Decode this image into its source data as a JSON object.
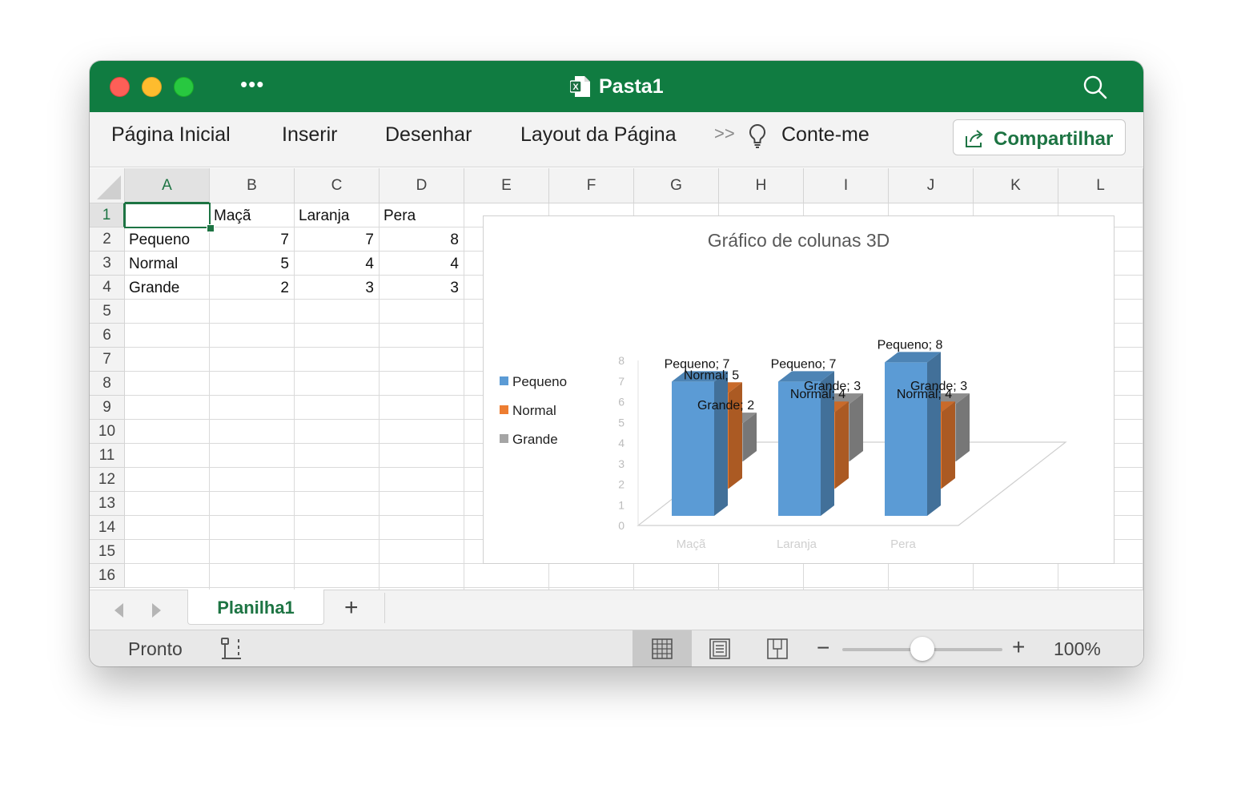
{
  "window": {
    "title": "Pasta1",
    "more_label": "•••"
  },
  "ribbon": {
    "tabs": [
      "Página Inicial",
      "Inserir",
      "Desenhar",
      "Layout da Página"
    ],
    "more": ">>",
    "tell_me": "Conte-me",
    "share_label": "Compartilhar"
  },
  "sheet": {
    "columns": [
      "A",
      "B",
      "C",
      "D",
      "E",
      "F",
      "G",
      "H",
      "I",
      "J",
      "K",
      "L"
    ],
    "rows": [
      "1",
      "2",
      "3",
      "4",
      "5",
      "6",
      "7",
      "8",
      "9",
      "10",
      "11",
      "12",
      "13",
      "14",
      "15",
      "16"
    ],
    "selected_cell": "A1",
    "header_row": [
      "",
      "Maçã",
      "Laranja",
      "Pera"
    ],
    "data_rows": [
      {
        "label": "Pequeno",
        "values": [
          "7",
          "7",
          "8"
        ]
      },
      {
        "label": "Normal",
        "values": [
          "5",
          "4",
          "4"
        ]
      },
      {
        "label": "Grande",
        "values": [
          "2",
          "3",
          "3"
        ]
      }
    ]
  },
  "chart_data": {
    "type": "bar",
    "subtype": "3d-column",
    "title": "Gráfico de colunas 3D",
    "categories": [
      "Maçã",
      "Laranja",
      "Pera"
    ],
    "series": [
      {
        "name": "Pequeno",
        "values": [
          7,
          7,
          8
        ],
        "color": "#5b9bd5"
      },
      {
        "name": "Normal",
        "values": [
          5,
          4,
          4
        ],
        "color": "#ed7d31"
      },
      {
        "name": "Grande",
        "values": [
          2,
          3,
          3
        ],
        "color": "#a5a5a5"
      }
    ],
    "y_ticks": [
      "0",
      "1",
      "2",
      "3",
      "4",
      "5",
      "6",
      "7",
      "8"
    ],
    "ylim": [
      0,
      8
    ],
    "data_label_separator": "; ",
    "legend_position": "left",
    "grid": false
  },
  "sheet_tabs": {
    "active": "Planilha1",
    "add_label": "+"
  },
  "statusbar": {
    "status": "Pronto",
    "zoom_minus": "−",
    "zoom_plus": "+",
    "zoom_label": "100%",
    "zoom_fraction": 0.5
  }
}
